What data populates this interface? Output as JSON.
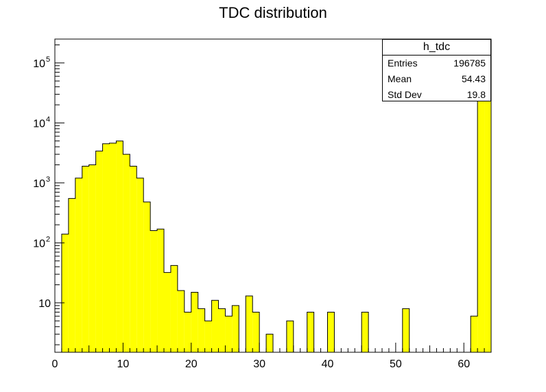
{
  "chart_data": {
    "type": "bar",
    "title": "TDC distribution",
    "xlabel": "",
    "ylabel": "",
    "x_range": [
      0,
      64
    ],
    "ylim": [
      1.5,
      250000
    ],
    "y_scale": "log",
    "bin_width": 1,
    "fill_color": "#ffff00",
    "line_color": "#000000",
    "grid": false,
    "x_ticks": [
      0,
      10,
      20,
      30,
      40,
      50,
      60
    ],
    "bin_low_edges": [
      1,
      2,
      3,
      4,
      5,
      6,
      7,
      8,
      9,
      10,
      11,
      12,
      13,
      14,
      15,
      16,
      17,
      18,
      19,
      20,
      21,
      22,
      23,
      24,
      25,
      26,
      27,
      28,
      29,
      30,
      31,
      32,
      33,
      34,
      35,
      36,
      37,
      38,
      39,
      40,
      41,
      42,
      43,
      44,
      45,
      46,
      47,
      48,
      49,
      50,
      51,
      52,
      53,
      54,
      55,
      56,
      57,
      58,
      59,
      60,
      61,
      62,
      63
    ],
    "bin_counts": [
      140,
      550,
      1200,
      1900,
      2000,
      3400,
      4500,
      4600,
      5000,
      3000,
      1900,
      1200,
      480,
      160,
      170,
      32,
      42,
      16,
      7,
      15,
      8,
      5,
      11,
      8,
      6,
      9,
      0,
      13,
      7,
      0,
      3,
      0,
      0,
      5,
      0,
      0,
      7,
      0,
      0,
      7,
      0,
      0,
      0,
      0,
      7,
      0,
      0,
      0,
      0,
      0,
      8,
      0,
      0,
      0,
      0,
      0,
      0,
      0,
      0,
      0,
      6,
      25000,
      28000
    ]
  },
  "stats": {
    "name": "h_tdc",
    "rows": [
      {
        "label": "Entries",
        "value": "196785"
      },
      {
        "label": "Mean",
        "value": "54.43"
      },
      {
        "label": "Std Dev",
        "value": "19.8"
      }
    ]
  }
}
